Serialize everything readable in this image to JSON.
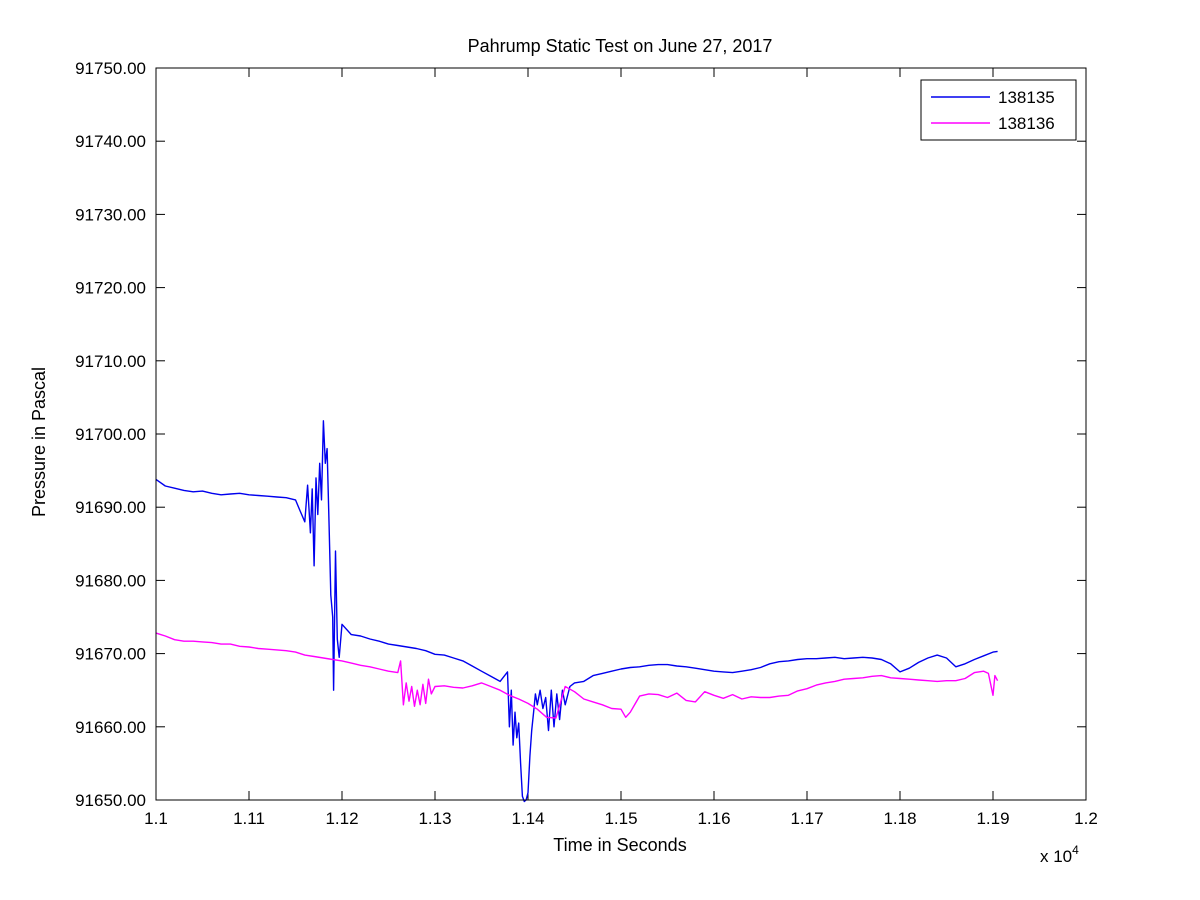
{
  "chart_data": {
    "type": "line",
    "title": "Pahrump Static Test on June 27, 2017",
    "xlabel": "Time in Seconds",
    "ylabel": "Pressure in Pascal",
    "x_multiplier_label": "x 10",
    "x_multiplier_exponent": "4",
    "xlim": [
      1.1,
      1.2
    ],
    "ylim": [
      91650,
      91750
    ],
    "x_ticks": [
      "1.1",
      "1.11",
      "1.12",
      "1.13",
      "1.14",
      "1.15",
      "1.16",
      "1.17",
      "1.18",
      "1.19",
      "1.2"
    ],
    "y_ticks": [
      "91650.00",
      "91660.00",
      "91670.00",
      "91680.00",
      "91690.00",
      "91700.00",
      "91710.00",
      "91720.00",
      "91730.00",
      "91740.00",
      "91750.00"
    ],
    "grid": false,
    "legend_position": "top-right",
    "series": [
      {
        "name": "138135",
        "color": "#0000ee",
        "points": [
          [
            1.1,
            91693.8
          ],
          [
            1.101,
            91692.9
          ],
          [
            1.102,
            91692.6
          ],
          [
            1.103,
            91692.3
          ],
          [
            1.104,
            91692.1
          ],
          [
            1.105,
            91692.2
          ],
          [
            1.106,
            91691.9
          ],
          [
            1.107,
            91691.7
          ],
          [
            1.108,
            91691.8
          ],
          [
            1.109,
            91691.9
          ],
          [
            1.11,
            91691.7
          ],
          [
            1.111,
            91691.6
          ],
          [
            1.112,
            91691.5
          ],
          [
            1.113,
            91691.4
          ],
          [
            1.114,
            91691.3
          ],
          [
            1.115,
            91691.0
          ],
          [
            1.1155,
            91689.5
          ],
          [
            1.116,
            91688.0
          ],
          [
            1.1163,
            91693.0
          ],
          [
            1.1166,
            91686.5
          ],
          [
            1.1168,
            91692.5
          ],
          [
            1.117,
            91682.0
          ],
          [
            1.1172,
            91694.0
          ],
          [
            1.1174,
            91689.0
          ],
          [
            1.1176,
            91696.0
          ],
          [
            1.1178,
            91691.0
          ],
          [
            1.118,
            91701.8
          ],
          [
            1.1182,
            91696.0
          ],
          [
            1.1184,
            91698.0
          ],
          [
            1.1186,
            91688.0
          ],
          [
            1.1188,
            91678.0
          ],
          [
            1.119,
            91675.0
          ],
          [
            1.1191,
            91665.0
          ],
          [
            1.1193,
            91684.0
          ],
          [
            1.1195,
            91672.0
          ],
          [
            1.1197,
            91669.5
          ],
          [
            1.12,
            91674.0
          ],
          [
            1.121,
            91672.6
          ],
          [
            1.122,
            91672.4
          ],
          [
            1.123,
            91672.0
          ],
          [
            1.124,
            91671.7
          ],
          [
            1.125,
            91671.3
          ],
          [
            1.126,
            91671.1
          ],
          [
            1.127,
            91670.9
          ],
          [
            1.128,
            91670.7
          ],
          [
            1.129,
            91670.4
          ],
          [
            1.13,
            91669.9
          ],
          [
            1.131,
            91669.8
          ],
          [
            1.132,
            91669.4
          ],
          [
            1.133,
            91669.0
          ],
          [
            1.134,
            91668.3
          ],
          [
            1.135,
            91667.6
          ],
          [
            1.136,
            91666.9
          ],
          [
            1.137,
            91666.2
          ],
          [
            1.1378,
            91667.5
          ],
          [
            1.138,
            91660.0
          ],
          [
            1.1382,
            91665.0
          ],
          [
            1.1384,
            91657.5
          ],
          [
            1.1386,
            91662.0
          ],
          [
            1.1388,
            91658.5
          ],
          [
            1.139,
            91660.5
          ],
          [
            1.1392,
            91655.0
          ],
          [
            1.1394,
            91650.5
          ],
          [
            1.1396,
            91649.8
          ],
          [
            1.1398,
            91650.0
          ],
          [
            1.14,
            91651.0
          ],
          [
            1.1402,
            91656.0
          ],
          [
            1.1404,
            91659.5
          ],
          [
            1.1406,
            91662.0
          ],
          [
            1.1408,
            91664.5
          ],
          [
            1.141,
            91663.0
          ],
          [
            1.1413,
            91665.0
          ],
          [
            1.1416,
            91662.5
          ],
          [
            1.1419,
            91664.0
          ],
          [
            1.1422,
            91659.5
          ],
          [
            1.1425,
            91665.0
          ],
          [
            1.1428,
            91660.0
          ],
          [
            1.1431,
            91664.5
          ],
          [
            1.1434,
            91661.0
          ],
          [
            1.1437,
            91665.0
          ],
          [
            1.144,
            91663.0
          ],
          [
            1.1445,
            91665.5
          ],
          [
            1.145,
            91666.0
          ],
          [
            1.146,
            91666.2
          ],
          [
            1.147,
            91667.0
          ],
          [
            1.148,
            91667.3
          ],
          [
            1.149,
            91667.6
          ],
          [
            1.15,
            91667.9
          ],
          [
            1.151,
            91668.1
          ],
          [
            1.152,
            91668.2
          ],
          [
            1.153,
            91668.4
          ],
          [
            1.154,
            91668.5
          ],
          [
            1.155,
            91668.5
          ],
          [
            1.156,
            91668.3
          ],
          [
            1.157,
            91668.2
          ],
          [
            1.158,
            91668.0
          ],
          [
            1.159,
            91667.8
          ],
          [
            1.16,
            91667.6
          ],
          [
            1.161,
            91667.5
          ],
          [
            1.162,
            91667.4
          ],
          [
            1.163,
            91667.6
          ],
          [
            1.164,
            91667.8
          ],
          [
            1.165,
            91668.1
          ],
          [
            1.166,
            91668.6
          ],
          [
            1.167,
            91668.9
          ],
          [
            1.168,
            91669.0
          ],
          [
            1.169,
            91669.2
          ],
          [
            1.17,
            91669.3
          ],
          [
            1.171,
            91669.3
          ],
          [
            1.172,
            91669.4
          ],
          [
            1.173,
            91669.5
          ],
          [
            1.174,
            91669.3
          ],
          [
            1.175,
            91669.4
          ],
          [
            1.176,
            91669.5
          ],
          [
            1.177,
            91669.4
          ],
          [
            1.178,
            91669.2
          ],
          [
            1.179,
            91668.6
          ],
          [
            1.18,
            91667.5
          ],
          [
            1.181,
            91668.0
          ],
          [
            1.182,
            91668.8
          ],
          [
            1.183,
            91669.4
          ],
          [
            1.184,
            91669.8
          ],
          [
            1.185,
            91669.4
          ],
          [
            1.186,
            91668.2
          ],
          [
            1.187,
            91668.6
          ],
          [
            1.188,
            91669.2
          ],
          [
            1.189,
            91669.7
          ],
          [
            1.19,
            91670.2
          ],
          [
            1.1905,
            91670.3
          ]
        ]
      },
      {
        "name": "138136",
        "color": "#ff00ff",
        "points": [
          [
            1.1,
            91672.8
          ],
          [
            1.101,
            91672.4
          ],
          [
            1.102,
            91671.9
          ],
          [
            1.103,
            91671.7
          ],
          [
            1.104,
            91671.7
          ],
          [
            1.105,
            91671.6
          ],
          [
            1.106,
            91671.5
          ],
          [
            1.107,
            91671.3
          ],
          [
            1.108,
            91671.3
          ],
          [
            1.109,
            91671.0
          ],
          [
            1.11,
            91670.9
          ],
          [
            1.111,
            91670.7
          ],
          [
            1.112,
            91670.6
          ],
          [
            1.113,
            91670.5
          ],
          [
            1.114,
            91670.4
          ],
          [
            1.115,
            91670.2
          ],
          [
            1.116,
            91669.8
          ],
          [
            1.117,
            91669.6
          ],
          [
            1.118,
            91669.4
          ],
          [
            1.119,
            91669.2
          ],
          [
            1.12,
            91669.0
          ],
          [
            1.121,
            91668.7
          ],
          [
            1.122,
            91668.4
          ],
          [
            1.123,
            91668.2
          ],
          [
            1.124,
            91667.9
          ],
          [
            1.125,
            91667.6
          ],
          [
            1.126,
            91667.4
          ],
          [
            1.1263,
            91669.0
          ],
          [
            1.1266,
            91663.0
          ],
          [
            1.1269,
            91666.0
          ],
          [
            1.1272,
            91663.5
          ],
          [
            1.1275,
            91665.5
          ],
          [
            1.1278,
            91662.8
          ],
          [
            1.1281,
            91665.0
          ],
          [
            1.1284,
            91663.0
          ],
          [
            1.1287,
            91665.8
          ],
          [
            1.129,
            91663.2
          ],
          [
            1.1293,
            91666.5
          ],
          [
            1.1296,
            91664.5
          ],
          [
            1.13,
            91665.5
          ],
          [
            1.131,
            91665.6
          ],
          [
            1.132,
            91665.4
          ],
          [
            1.133,
            91665.3
          ],
          [
            1.134,
            91665.6
          ],
          [
            1.135,
            91666.0
          ],
          [
            1.136,
            91665.5
          ],
          [
            1.137,
            91665.0
          ],
          [
            1.138,
            91664.3
          ],
          [
            1.139,
            91663.8
          ],
          [
            1.14,
            91663.2
          ],
          [
            1.141,
            91662.4
          ],
          [
            1.142,
            91661.3
          ],
          [
            1.143,
            91661.2
          ],
          [
            1.144,
            91665.5
          ],
          [
            1.145,
            91664.8
          ],
          [
            1.146,
            91663.8
          ],
          [
            1.147,
            91663.4
          ],
          [
            1.148,
            91663.0
          ],
          [
            1.149,
            91662.5
          ],
          [
            1.15,
            91662.4
          ],
          [
            1.1505,
            91661.3
          ],
          [
            1.151,
            91662.0
          ],
          [
            1.152,
            91664.2
          ],
          [
            1.153,
            91664.5
          ],
          [
            1.154,
            91664.4
          ],
          [
            1.155,
            91664.0
          ],
          [
            1.156,
            91664.6
          ],
          [
            1.157,
            91663.6
          ],
          [
            1.158,
            91663.4
          ],
          [
            1.159,
            91664.8
          ],
          [
            1.16,
            91664.3
          ],
          [
            1.161,
            91663.9
          ],
          [
            1.162,
            91664.4
          ],
          [
            1.163,
            91663.8
          ],
          [
            1.164,
            91664.1
          ],
          [
            1.165,
            91664.0
          ],
          [
            1.166,
            91664.0
          ],
          [
            1.167,
            91664.2
          ],
          [
            1.168,
            91664.3
          ],
          [
            1.169,
            91664.9
          ],
          [
            1.17,
            91665.2
          ],
          [
            1.171,
            91665.7
          ],
          [
            1.172,
            91666.0
          ],
          [
            1.173,
            91666.2
          ],
          [
            1.174,
            91666.5
          ],
          [
            1.175,
            91666.6
          ],
          [
            1.176,
            91666.7
          ],
          [
            1.177,
            91666.9
          ],
          [
            1.178,
            91667.0
          ],
          [
            1.179,
            91666.7
          ],
          [
            1.18,
            91666.6
          ],
          [
            1.181,
            91666.5
          ],
          [
            1.182,
            91666.4
          ],
          [
            1.183,
            91666.3
          ],
          [
            1.184,
            91666.2
          ],
          [
            1.185,
            91666.3
          ],
          [
            1.186,
            91666.3
          ],
          [
            1.187,
            91666.6
          ],
          [
            1.188,
            91667.4
          ],
          [
            1.189,
            91667.6
          ],
          [
            1.1895,
            91667.3
          ],
          [
            1.19,
            91664.3
          ],
          [
            1.1902,
            91667.0
          ],
          [
            1.1905,
            91666.3
          ]
        ]
      }
    ]
  }
}
